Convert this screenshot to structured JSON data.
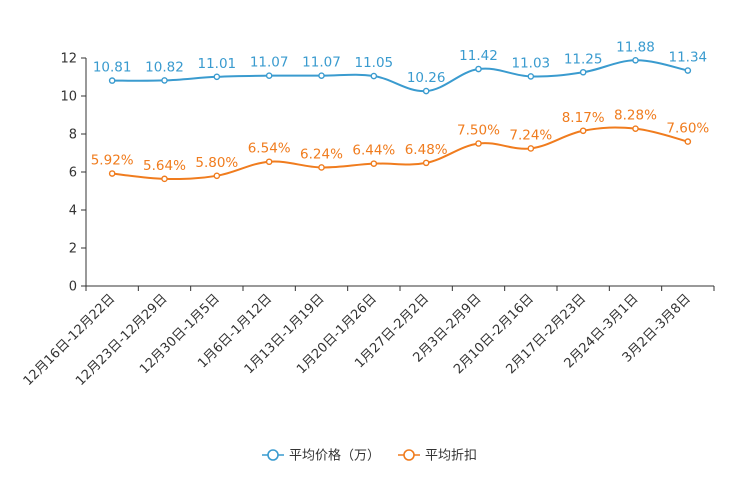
{
  "chart_data": {
    "type": "line",
    "categories": [
      "12月16日-12月22日",
      "12月23日-12月29日",
      "12月30日-1月5日",
      "1月6日-1月12日",
      "1月13日-1月19日",
      "1月20日-1月26日",
      "1月27日-2月2日",
      "2月3日-2月9日",
      "2月10日-2月16日",
      "2月17日-2月23日",
      "2月24日-3月1日",
      "3月2日-3月8日"
    ],
    "series": [
      {
        "name": "平均价格（万）",
        "color": "#3a9bcf",
        "values": [
          10.81,
          10.82,
          11.01,
          11.07,
          11.07,
          11.05,
          10.26,
          11.42,
          11.03,
          11.25,
          11.88,
          11.34
        ],
        "labels": [
          "10.81",
          "10.82",
          "11.01",
          "11.07",
          "11.07",
          "11.05",
          "10.26",
          "11.42",
          "11.03",
          "11.25",
          "11.88",
          "11.34"
        ]
      },
      {
        "name": "平均折扣",
        "color": "#f07c1e",
        "values": [
          5.92,
          5.64,
          5.8,
          6.54,
          6.24,
          6.44,
          6.48,
          7.5,
          7.24,
          8.17,
          8.28,
          7.6
        ],
        "labels": [
          "5.92%",
          "5.64%",
          "5.80%",
          "6.54%",
          "6.24%",
          "6.44%",
          "6.48%",
          "7.50%",
          "7.24%",
          "8.17%",
          "8.28%",
          "7.60%"
        ]
      }
    ],
    "yticks": [
      "0",
      "2",
      "4",
      "6",
      "8",
      "10",
      "12"
    ],
    "ylim": [
      0,
      12
    ],
    "grid": false,
    "legend_position": "bottom-center"
  }
}
